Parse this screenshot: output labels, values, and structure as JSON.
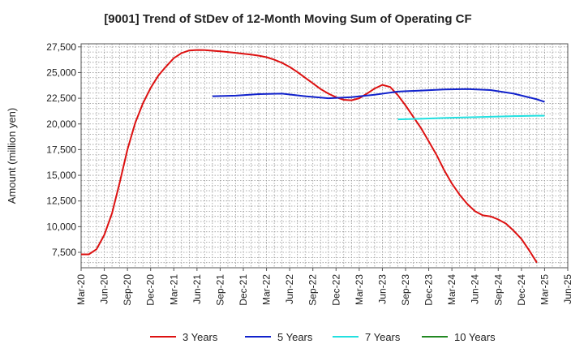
{
  "chart_data": {
    "type": "line",
    "title": "[9001]  Trend of StDev of 12-Month Moving Sum of Operating CF",
    "ylabel": "Amount (million yen)",
    "xlabel": "",
    "ylim": [
      6000,
      27800
    ],
    "yticks": [
      7500,
      10000,
      12500,
      15000,
      17500,
      20000,
      22500,
      25000,
      27500
    ],
    "ytick_labels": [
      "7,500",
      "10,000",
      "12,500",
      "15,000",
      "17,500",
      "20,000",
      "22,500",
      "25,000",
      "27,500"
    ],
    "xticks": [
      "Mar-20",
      "Jun-20",
      "Sep-20",
      "Dec-20",
      "Mar-21",
      "Jun-21",
      "Sep-21",
      "Dec-21",
      "Mar-22",
      "Jun-22",
      "Sep-22",
      "Dec-22",
      "Mar-23",
      "Jun-23",
      "Sep-23",
      "Dec-23",
      "Mar-24",
      "Jun-24",
      "Sep-24",
      "Dec-24",
      "Mar-25",
      "Jun-25"
    ],
    "x_range": [
      "2020-03",
      "2025-06"
    ],
    "grid": true,
    "legend_position": "bottom",
    "series": [
      {
        "name": "3 Years",
        "color": "#dd1111",
        "x": [
          "2020-03",
          "2020-04",
          "2020-05",
          "2020-06",
          "2020-07",
          "2020-08",
          "2020-09",
          "2020-10",
          "2020-11",
          "2020-12",
          "2021-01",
          "2021-02",
          "2021-03",
          "2021-04",
          "2021-05",
          "2021-06",
          "2021-07",
          "2021-08",
          "2021-09",
          "2021-10",
          "2021-11",
          "2021-12",
          "2022-01",
          "2022-02",
          "2022-03",
          "2022-04",
          "2022-05",
          "2022-06",
          "2022-07",
          "2022-08",
          "2022-09",
          "2022-10",
          "2022-11",
          "2022-12",
          "2023-01",
          "2023-02",
          "2023-03",
          "2023-04",
          "2023-05",
          "2023-06",
          "2023-07",
          "2023-08",
          "2023-09",
          "2023-10",
          "2023-11",
          "2023-12",
          "2024-01",
          "2024-02",
          "2024-03",
          "2024-04",
          "2024-05",
          "2024-06",
          "2024-07",
          "2024-08",
          "2024-09",
          "2024-10",
          "2024-11",
          "2024-12",
          "2025-01",
          "2025-02",
          "2025-03"
        ],
        "values": [
          7300,
          7300,
          7800,
          9200,
          11300,
          14300,
          17500,
          20100,
          22000,
          23500,
          24700,
          25600,
          26400,
          26900,
          27150,
          27200,
          27180,
          27130,
          27070,
          27000,
          26920,
          26840,
          26750,
          26650,
          26500,
          26250,
          25950,
          25550,
          25050,
          24500,
          23950,
          23400,
          22950,
          22600,
          22350,
          22300,
          22500,
          22950,
          23450,
          23800,
          23600,
          22800,
          21800,
          20700,
          19600,
          18300,
          17000,
          15500,
          14200,
          13100,
          12200,
          11500,
          11100,
          11000,
          10700,
          10300,
          9600,
          8800,
          7700,
          6500,
          null
        ]
      },
      {
        "name": "5 Years",
        "color": "#1122cc",
        "x": [
          "2021-08",
          "2021-11",
          "2022-02",
          "2022-05",
          "2022-08",
          "2022-11",
          "2023-02",
          "2023-05",
          "2023-08",
          "2023-11",
          "2024-02",
          "2024-05",
          "2024-08",
          "2024-11",
          "2025-02",
          "2025-03"
        ],
        "values": [
          22700,
          22750,
          22900,
          22950,
          22700,
          22500,
          22600,
          22850,
          23150,
          23250,
          23350,
          23400,
          23300,
          22950,
          22400,
          22150
        ]
      },
      {
        "name": "7 Years",
        "color": "#22e0e0",
        "x": [
          "2023-08",
          "2023-11",
          "2024-02",
          "2024-05",
          "2024-08",
          "2024-11",
          "2025-02",
          "2025-03"
        ],
        "values": [
          20450,
          20500,
          20580,
          20640,
          20700,
          20760,
          20800,
          20800
        ]
      },
      {
        "name": "10 Years",
        "color": "#228822",
        "x": [],
        "values": []
      }
    ]
  }
}
